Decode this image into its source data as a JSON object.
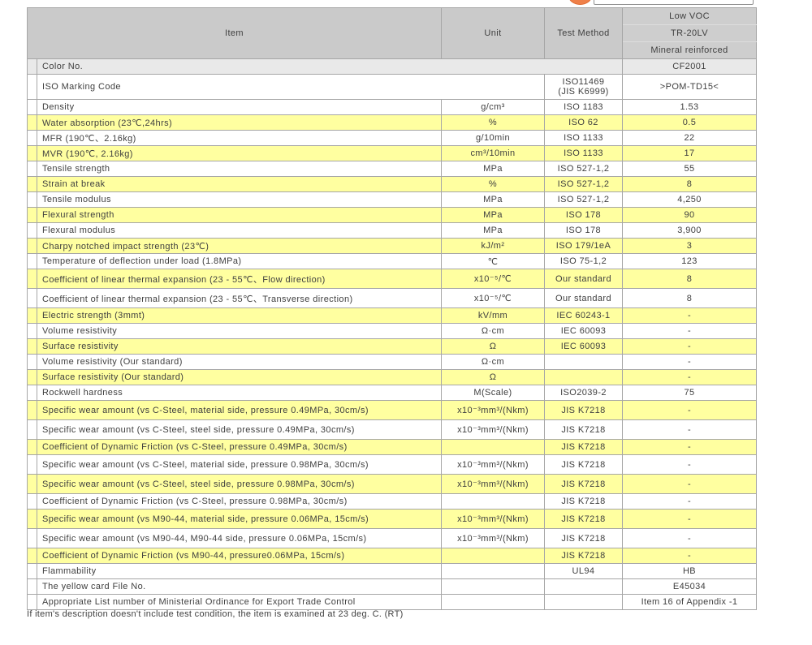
{
  "colors": {
    "accent_orange": "#ef8049",
    "row_highlight_yellow": "#ffffa0",
    "header_gray": "#cacaca",
    "subrow_gray": "#e9e9e9",
    "border_gray": "#a6a6a6"
  },
  "note": "If item's description doesn't include test condition, the item is examined at 23 deg. C. (RT)",
  "table": {
    "headers": {
      "item": "Item",
      "unit": "Unit",
      "test_method": "Test Method"
    },
    "product": {
      "line1": "Low VOC",
      "line2": "TR-20LV",
      "line3": "Mineral reinforced"
    },
    "color_row": {
      "label": "Color No.",
      "value": "CF2001"
    },
    "iso_row": {
      "label": "ISO Marking Code",
      "method_line1": "ISO11469",
      "method_line2": "(JIS K6999)",
      "value": ">POM-TD15<"
    },
    "rows": [
      {
        "item": "Density",
        "unit": "g/cm³",
        "method": "ISO 1183",
        "value": "1.53",
        "y": false
      },
      {
        "item": "Water absorption (23℃,24hrs)",
        "unit": "%",
        "method": "ISO 62",
        "value": "0.5",
        "y": true
      },
      {
        "item": "MFR (190℃、2.16kg)",
        "unit": "g/10min",
        "method": "ISO 1133",
        "value": "22",
        "y": false
      },
      {
        "item": "MVR (190℃, 2.16kg)",
        "unit": "cm³/10min",
        "method": "ISO 1133",
        "value": "17",
        "y": true
      },
      {
        "item": "Tensile strength",
        "unit": "MPa",
        "method": "ISO 527-1,2",
        "value": "55",
        "y": false
      },
      {
        "item": "Strain at break",
        "unit": "%",
        "method": "ISO 527-1,2",
        "value": "8",
        "y": true
      },
      {
        "item": "Tensile modulus",
        "unit": "MPa",
        "method": "ISO 527-1,2",
        "value": "4,250",
        "y": false
      },
      {
        "item": "Flexural strength",
        "unit": "MPa",
        "method": "ISO 178",
        "value": "90",
        "y": true
      },
      {
        "item": "Flexural modulus",
        "unit": "MPa",
        "method": "ISO 178",
        "value": "3,900",
        "y": false
      },
      {
        "item": "Charpy notched impact strength (23℃)",
        "unit": "kJ/m²",
        "method": "ISO 179/1eA",
        "value": "3",
        "y": true
      },
      {
        "item": "Temperature of deflection under load (1.8MPa)",
        "unit": "℃",
        "method": "ISO 75-1,2",
        "value": "123",
        "y": false
      },
      {
        "item": "Coefficient of linear thermal expansion (23 - 55℃、Flow direction)",
        "unit": "x10⁻⁵/℃",
        "method": "Our standard",
        "value": "8",
        "y": true,
        "tall": true
      },
      {
        "item": "Coefficient of linear thermal expansion (23 - 55℃、Transverse direction)",
        "unit": "x10⁻⁵/℃",
        "method": "Our standard",
        "value": "8",
        "y": false,
        "tall": true
      },
      {
        "item": "Electric strength (3mmt)",
        "unit": "kV/mm",
        "method": "IEC 60243-1",
        "value": "-",
        "y": true
      },
      {
        "item": "Volume resistivity",
        "unit": "Ω·cm",
        "method": "IEC 60093",
        "value": "-",
        "y": false
      },
      {
        "item": "Surface resistivity",
        "unit": "Ω",
        "method": "IEC 60093",
        "value": "-",
        "y": true
      },
      {
        "item": "Volume resistivity (Our standard)",
        "unit": "Ω·cm",
        "method": "",
        "value": "-",
        "y": false
      },
      {
        "item": "Surface resistivity (Our standard)",
        "unit": "Ω",
        "method": "",
        "value": "-",
        "y": true
      },
      {
        "item": "Rockwell hardness",
        "unit": "M(Scale)",
        "method": "ISO2039-2",
        "value": "75",
        "y": false
      },
      {
        "item": "Specific wear amount (vs C-Steel, material side, pressure 0.49MPa, 30cm/s)",
        "unit": "x10⁻³mm³/(Nkm)",
        "method": "JIS K7218",
        "value": "-",
        "y": true,
        "tall": true
      },
      {
        "item": "Specific wear amount (vs C-Steel, steel side, pressure 0.49MPa, 30cm/s)",
        "unit": "x10⁻³mm³/(Nkm)",
        "method": "JIS K7218",
        "value": "-",
        "y": false,
        "tall": true
      },
      {
        "item": "Coefficient of Dynamic Friction (vs C-Steel, pressure 0.49MPa, 30cm/s)",
        "unit": "",
        "method": "JIS K7218",
        "value": "-",
        "y": true
      },
      {
        "item": "Specific wear amount (vs C-Steel, material side, pressure 0.98MPa, 30cm/s)",
        "unit": "x10⁻³mm³/(Nkm)",
        "method": "JIS K7218",
        "value": "-",
        "y": false,
        "tall": true
      },
      {
        "item": "Specific wear amount (vs C-Steel, steel side, pressure 0.98MPa, 30cm/s)",
        "unit": "x10⁻³mm³/(Nkm)",
        "method": "JIS K7218",
        "value": "-",
        "y": true,
        "tall": true
      },
      {
        "item": "Coefficient of Dynamic Friction (vs C-Steel, pressure 0.98MPa, 30cm/s)",
        "unit": "",
        "method": "JIS K7218",
        "value": "-",
        "y": false
      },
      {
        "item": "Specific wear amount (vs M90-44, material side, pressure 0.06MPa, 15cm/s)",
        "unit": "x10⁻³mm³/(Nkm)",
        "method": "JIS K7218",
        "value": "-",
        "y": true,
        "tall": true
      },
      {
        "item": "Specific wear amount (vs M90-44, M90-44 side, pressure 0.06MPa, 15cm/s)",
        "unit": "x10⁻³mm³/(Nkm)",
        "method": "JIS K7218",
        "value": "-",
        "y": false,
        "tall": true
      },
      {
        "item": "Coefficient of Dynamic Friction (vs M90-44, pressure0.06MPa, 15cm/s)",
        "unit": "",
        "method": "JIS K7218",
        "value": "-",
        "y": true
      },
      {
        "item": "Flammability",
        "unit": "",
        "method": "UL94",
        "value": "HB",
        "y": false
      },
      {
        "item": "The yellow card File No.",
        "unit": "",
        "method": "",
        "value": "E45034",
        "y": false
      },
      {
        "item": "Appropriate List number of Ministerial Ordinance for Export Trade Control",
        "unit": "",
        "method": "",
        "value": "Item 16 of Appendix -1",
        "y": false
      }
    ]
  }
}
